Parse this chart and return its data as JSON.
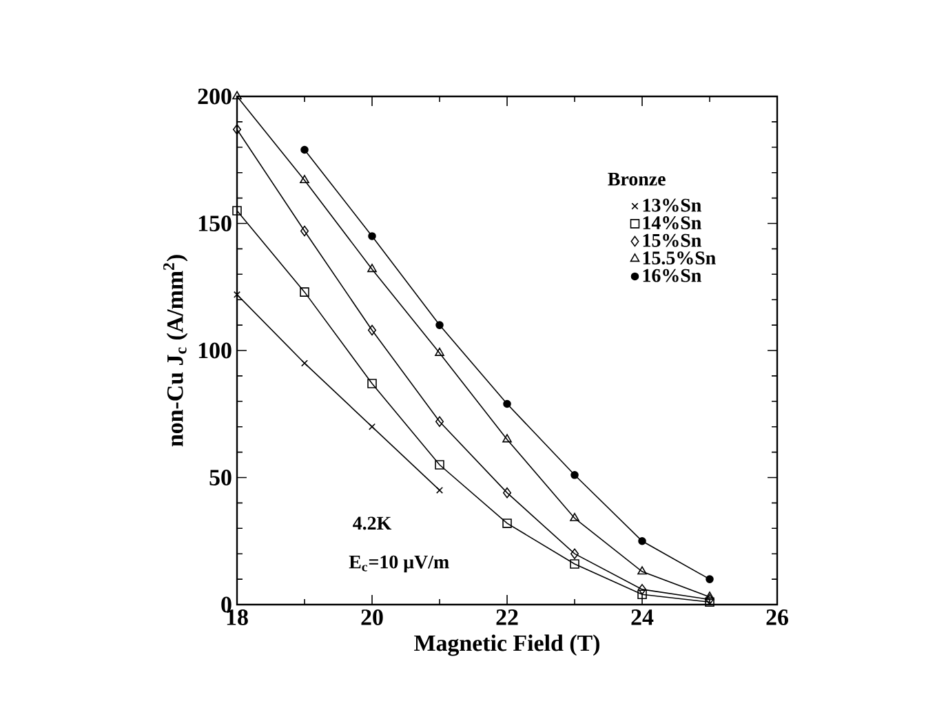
{
  "chart_data": {
    "type": "line",
    "xlabel": "Magnetic Field (T)",
    "ylabel": "non-Cu J$_{c}$ (A/mm$^{2}$)",
    "legend_title": "Bronze",
    "legend": "top right",
    "grid": false,
    "xlim": [
      18,
      26
    ],
    "xticks": [
      18,
      20,
      22,
      24,
      26
    ],
    "ylim": [
      0,
      200
    ],
    "yticks": [
      0,
      50,
      100,
      150,
      200
    ],
    "annotations": [
      "4.2K",
      "E$_{c}$=10 μV/m"
    ],
    "series": [
      {
        "name": "13%Sn",
        "color": "#000000",
        "marker": "cross",
        "x": [
          18,
          19,
          20,
          21
        ],
        "values": [
          122,
          95,
          70,
          45
        ]
      },
      {
        "name": "14%Sn",
        "color": "#000000",
        "marker": "square",
        "x": [
          18,
          19,
          20,
          21,
          22,
          23,
          24,
          25
        ],
        "values": [
          155,
          123,
          87,
          55,
          32,
          16,
          4,
          1
        ]
      },
      {
        "name": "15%Sn",
        "color": "#000000",
        "marker": "diamond",
        "x": [
          18,
          19,
          20,
          21,
          22,
          23,
          24,
          25
        ],
        "values": [
          187,
          147,
          108,
          72,
          44,
          20,
          6,
          2
        ]
      },
      {
        "name": "15.5%Sn",
        "color": "#000000",
        "marker": "triangle",
        "x": [
          18,
          19,
          20,
          21,
          22,
          23,
          24,
          25
        ],
        "values": [
          200,
          167,
          132,
          99,
          65,
          34,
          13,
          3
        ]
      },
      {
        "name": "16%Sn",
        "color": "#000000",
        "marker": "circle",
        "x": [
          19,
          20,
          21,
          22,
          23,
          24,
          25
        ],
        "values": [
          179,
          145,
          110,
          79,
          51,
          25,
          10
        ]
      }
    ]
  }
}
